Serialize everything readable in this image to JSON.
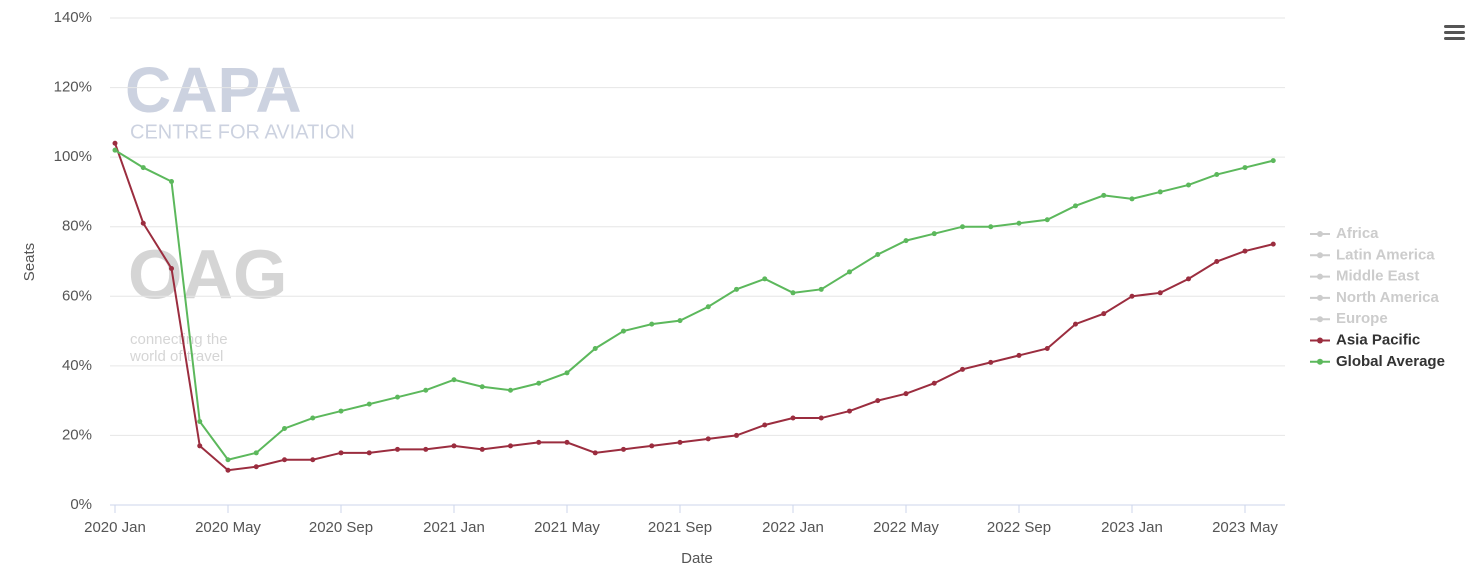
{
  "chart_data": {
    "type": "line",
    "watermark": {
      "brand": "CAPA",
      "tagline": "CENTRE FOR AVIATION",
      "brand2": "OAG",
      "tagline2": [
        "connecting the",
        "world of travel"
      ]
    },
    "ylabel": "Seats",
    "xlabel": "Date",
    "categories": [
      "2020 Jan",
      null,
      null,
      null,
      "2020 May",
      null,
      null,
      null,
      "2020 Sep",
      null,
      null,
      null,
      "2021 Jan",
      null,
      null,
      null,
      "2021 May",
      null,
      null,
      null,
      "2021 Sep",
      null,
      null,
      null,
      "2022 Jan",
      null,
      null,
      null,
      "2022 May",
      null,
      null,
      null,
      "2022 Sep",
      null,
      null,
      null,
      "2023 Jan",
      null,
      null,
      null,
      "2023 May",
      null
    ],
    "ylim": [
      0,
      140
    ],
    "yticks": [
      {
        "value": 0,
        "label": "0%"
      },
      {
        "value": 20,
        "label": "20%"
      },
      {
        "value": 40,
        "label": "40%"
      },
      {
        "value": 60,
        "label": "60%"
      },
      {
        "value": 80,
        "label": "80%"
      },
      {
        "value": 100,
        "label": "100%"
      },
      {
        "value": 120,
        "label": "120%"
      },
      {
        "value": 140,
        "label": "140%"
      }
    ],
    "grid": true,
    "legend": "right",
    "series": [
      {
        "name": "Africa",
        "color": "#cccccc",
        "visible": false
      },
      {
        "name": "Latin America",
        "color": "#cccccc",
        "visible": false
      },
      {
        "name": "Middle East",
        "color": "#cccccc",
        "visible": false
      },
      {
        "name": "North America",
        "color": "#cccccc",
        "visible": false
      },
      {
        "name": "Europe",
        "color": "#cccccc",
        "visible": false
      },
      {
        "name": "Asia Pacific",
        "color": "#9b2d3f",
        "visible": true,
        "values": [
          104,
          81,
          68,
          17,
          10,
          11,
          13,
          13,
          15,
          15,
          16,
          16,
          17,
          16,
          17,
          18,
          18,
          15,
          16,
          17,
          18,
          19,
          20,
          23,
          25,
          25,
          27,
          30,
          32,
          35,
          39,
          41,
          43,
          45,
          52,
          55,
          60,
          61,
          65,
          70,
          73,
          75
        ]
      },
      {
        "name": "Global Average",
        "color": "#5cb85c",
        "visible": true,
        "values": [
          102,
          97,
          93,
          24,
          13,
          15,
          22,
          25,
          27,
          29,
          31,
          33,
          36,
          34,
          33,
          35,
          38,
          45,
          50,
          52,
          53,
          57,
          62,
          65,
          61,
          62,
          67,
          72,
          76,
          78,
          80,
          80,
          81,
          82,
          86,
          89,
          88,
          90,
          92,
          95,
          97,
          99
        ]
      }
    ]
  }
}
